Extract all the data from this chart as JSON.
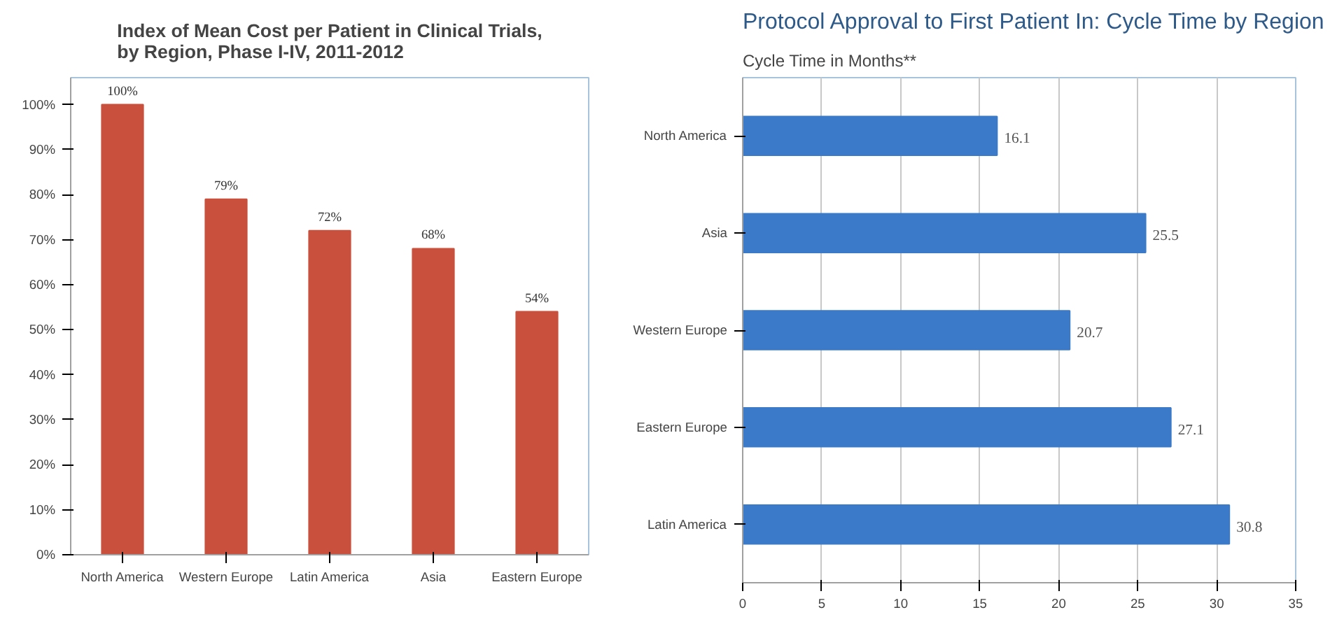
{
  "chart_data": [
    {
      "type": "bar",
      "title": "Index of Mean Cost per Patient in Clinical Trials,\nby Region, Phase I-IV, 2011-2012",
      "categories": [
        "North America",
        "Western Europe",
        "Latin America",
        "Asia",
        "Eastern Europe"
      ],
      "values": [
        100,
        79,
        72,
        68,
        54
      ],
      "color": "#c8503c",
      "value_labels": [
        "100%",
        "79%",
        "72%",
        "68%",
        "54%"
      ],
      "ylim": [
        0,
        100
      ],
      "yticks": [
        {
          "value": 0,
          "label": "0%"
        },
        {
          "value": 10,
          "label": "10%"
        },
        {
          "value": 20,
          "label": "20%"
        },
        {
          "value": 30,
          "label": "30%"
        },
        {
          "value": 40,
          "label": "40%"
        },
        {
          "value": 50,
          "label": "50%"
        },
        {
          "value": 60,
          "label": "60%"
        },
        {
          "value": 70,
          "label": "70%"
        },
        {
          "value": 80,
          "label": "80%"
        },
        {
          "value": 90,
          "label": "90%"
        },
        {
          "value": 100,
          "label": "100%"
        }
      ],
      "grid": false
    },
    {
      "type": "bar",
      "orientation": "horizontal",
      "title": "Protocol Approval to First Patient In: Cycle Time by Region",
      "subtitle": "Cycle Time in Months**",
      "categories": [
        "North America",
        "Asia",
        "Western Europe",
        "Eastern Europe",
        "Latin America"
      ],
      "values": [
        16.1,
        25.5,
        20.7,
        27.1,
        30.8
      ],
      "color": "#3a7ac8",
      "data_labels": true,
      "xlim": [
        0,
        35
      ],
      "xticks": [
        0,
        5,
        10,
        15,
        20,
        25,
        30,
        35
      ],
      "grid": "x"
    }
  ]
}
